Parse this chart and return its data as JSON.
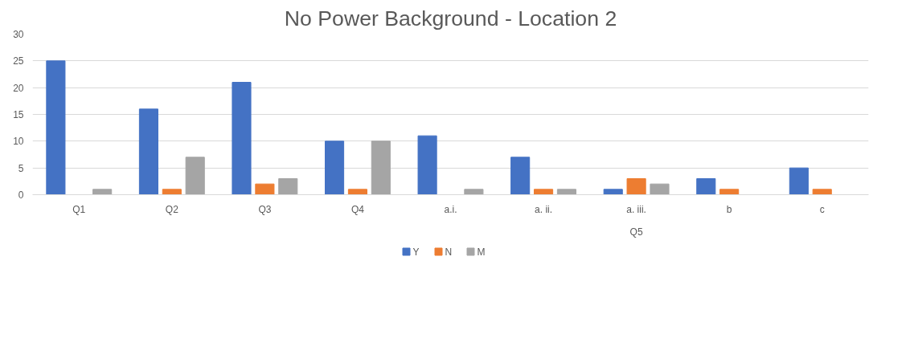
{
  "chart_data": {
    "type": "bar",
    "title": "No Power Background - Location 2",
    "categories": [
      "Q1",
      "Q2",
      "Q3",
      "Q4",
      "a.i.",
      "a. ii.",
      "a. iii.",
      "b",
      "c"
    ],
    "series": [
      {
        "name": "Y",
        "color": "#4472c4",
        "values": [
          25,
          16,
          21,
          10,
          11,
          7,
          1,
          3,
          5
        ]
      },
      {
        "name": "N",
        "color": "#ed7d31",
        "values": [
          0,
          1,
          2,
          1,
          0,
          1,
          3,
          1,
          1
        ]
      },
      {
        "name": "M",
        "color": "#a5a5a5",
        "values": [
          1,
          7,
          3,
          10,
          1,
          1,
          2,
          0,
          0
        ]
      }
    ],
    "annotations": [
      "Q5"
    ],
    "ylim": [
      0,
      30
    ],
    "yticks": [
      0,
      5,
      10,
      15,
      20,
      25,
      30
    ],
    "grid": "y",
    "legend": "bottom"
  }
}
